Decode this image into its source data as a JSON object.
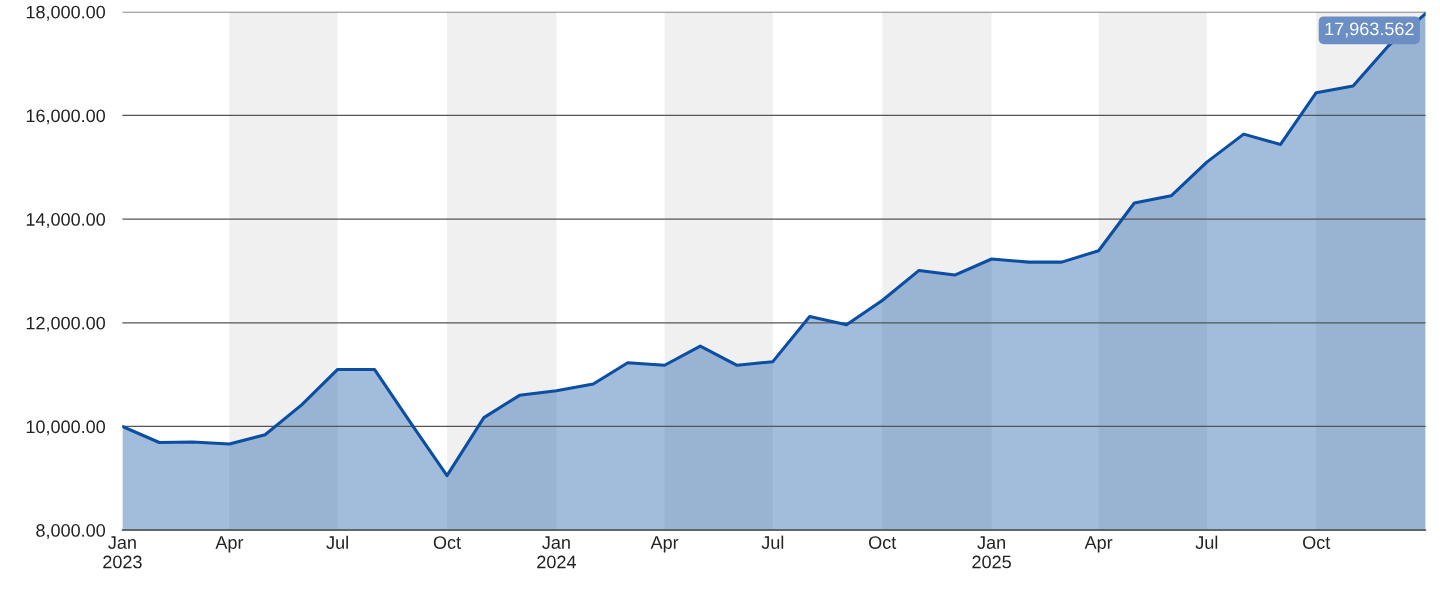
{
  "chart_data": {
    "type": "area",
    "x": [
      "2023-01",
      "2023-02",
      "2023-03",
      "2023-04",
      "2023-05",
      "2023-06",
      "2023-07",
      "2023-08",
      "2023-09",
      "2023-10",
      "2023-11",
      "2023-12",
      "2024-01",
      "2024-02",
      "2024-03",
      "2024-04",
      "2024-05",
      "2024-06",
      "2024-07",
      "2024-08",
      "2024-09",
      "2024-10",
      "2024-11",
      "2024-12",
      "2025-01",
      "2025-02",
      "2025-03",
      "2025-04",
      "2025-05",
      "2025-06",
      "2025-07",
      "2025-08",
      "2025-09",
      "2025-10",
      "2025-11",
      "2025-12",
      "2026-01"
    ],
    "series": [
      {
        "color": "#0b4ea2",
        "values": [
          10000,
          9690,
          9700,
          9660,
          9840,
          10420,
          11100,
          11100,
          10050,
          9050,
          10170,
          10600,
          10690,
          10820,
          11230,
          11180,
          11550,
          11180,
          11250,
          12120,
          11960,
          12430,
          13010,
          12920,
          13230,
          13170,
          13170,
          13390,
          14310,
          14450,
          15100,
          15640,
          15440,
          16440,
          16570,
          17350,
          17963.562
        ]
      }
    ],
    "xlim": [
      "2023-01",
      "2026-01"
    ],
    "xticks": [
      {
        "value": "2023-01",
        "label": "Jan\n2023"
      },
      {
        "value": "2023-04",
        "label": "Apr"
      },
      {
        "value": "2023-07",
        "label": "Jul"
      },
      {
        "value": "2023-10",
        "label": "Oct"
      },
      {
        "value": "2024-01",
        "label": "Jan\n2024"
      },
      {
        "value": "2024-04",
        "label": "Apr"
      },
      {
        "value": "2024-07",
        "label": "Jul"
      },
      {
        "value": "2024-10",
        "label": "Oct"
      },
      {
        "value": "2025-01",
        "label": "Jan\n2025"
      },
      {
        "value": "2025-04",
        "label": "Apr"
      },
      {
        "value": "2025-07",
        "label": "Jul"
      },
      {
        "value": "2025-10",
        "label": "Oct"
      }
    ],
    "ylim": [
      8000,
      18000
    ],
    "yticks": [
      {
        "value": 8000,
        "label": "8,000.00"
      },
      {
        "value": 10000,
        "label": "10,000.00"
      },
      {
        "value": 12000,
        "label": "12,000.00"
      },
      {
        "value": 14000,
        "label": "14,000.00"
      },
      {
        "value": 16000,
        "label": "16,000.00"
      },
      {
        "value": 18000,
        "label": "18,000.00"
      }
    ],
    "grid": "y",
    "bands": [
      {
        "axis": "x",
        "from": "2023-04",
        "to": "2023-07",
        "color": "#f0f0f0"
      },
      {
        "axis": "x",
        "from": "2023-10",
        "to": "2024-01",
        "color": "#f0f0f0"
      },
      {
        "axis": "x",
        "from": "2024-04",
        "to": "2024-07",
        "color": "#f0f0f0"
      },
      {
        "axis": "x",
        "from": "2024-10",
        "to": "2025-01",
        "color": "#f0f0f0"
      },
      {
        "axis": "x",
        "from": "2025-04",
        "to": "2025-07",
        "color": "#f0f0f0"
      },
      {
        "axis": "x",
        "from": "2025-10",
        "to": "2026-01",
        "color": "#f0f0f0"
      }
    ],
    "annotations": [
      {
        "text": "17,963.562",
        "x": "2026-01",
        "y": 17963.562
      }
    ]
  }
}
